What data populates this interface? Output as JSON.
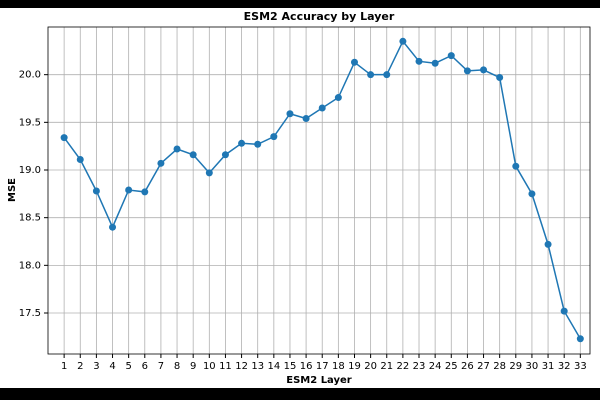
{
  "chart_data": {
    "type": "line",
    "title": "ESM2 Accuracy by Layer",
    "x_label": "ESM2 Layer",
    "y_label": "MSE",
    "x": [
      1,
      2,
      3,
      4,
      5,
      6,
      7,
      8,
      9,
      10,
      11,
      12,
      13,
      14,
      15,
      16,
      17,
      18,
      19,
      20,
      21,
      22,
      23,
      24,
      25,
      26,
      27,
      28,
      29,
      30,
      31,
      32,
      33
    ],
    "series": [
      {
        "color": "#1f77b4",
        "values": [
          19.34,
          19.11,
          18.78,
          18.4,
          18.79,
          18.77,
          19.07,
          19.22,
          19.16,
          18.97,
          19.16,
          19.28,
          19.27,
          19.35,
          19.59,
          19.54,
          19.65,
          19.76,
          20.13,
          20.0,
          20.0,
          20.35,
          20.14,
          20.12,
          20.2,
          20.04,
          20.05,
          19.97,
          19.04,
          18.75,
          18.22,
          17.52,
          17.23
        ]
      }
    ],
    "xlim": [
      0,
      33.6
    ],
    "ylim": [
      17.07,
      20.5
    ],
    "xticks": [
      1,
      2,
      3,
      4,
      5,
      6,
      7,
      8,
      9,
      10,
      11,
      12,
      13,
      14,
      15,
      16,
      17,
      18,
      19,
      20,
      21,
      22,
      23,
      24,
      25,
      26,
      27,
      28,
      29,
      30,
      31,
      32,
      33
    ],
    "yticks": [
      17.5,
      {
        "value": 18,
        "label": "18.0"
      },
      18.5,
      {
        "value": 19,
        "label": "19.0"
      },
      19.5,
      {
        "value": 20,
        "label": "20.0"
      }
    ],
    "grid": true
  }
}
